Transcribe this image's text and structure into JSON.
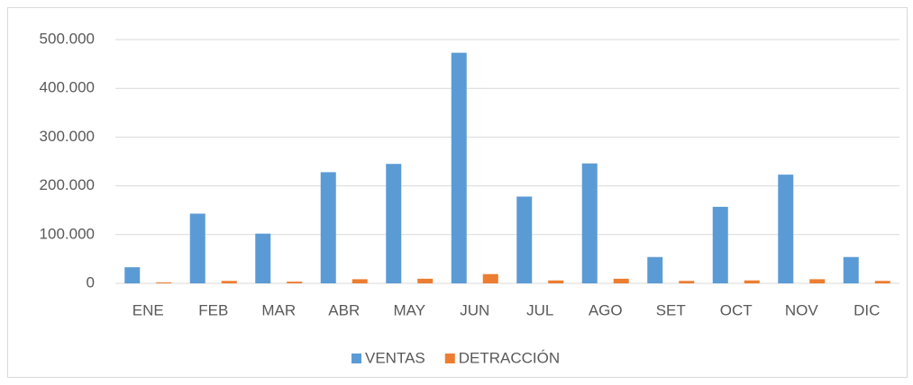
{
  "chart_data": {
    "type": "bar",
    "categories": [
      "ENE",
      "FEB",
      "MAR",
      "ABR",
      "MAY",
      "JUN",
      "JUL",
      "AGO",
      "SET",
      "OCT",
      "NOV",
      "DIC"
    ],
    "series": [
      {
        "name": "VENTAS",
        "color": "#5b9bd5",
        "values": [
          33000,
          143000,
          102000,
          228000,
          245000,
          473000,
          178000,
          246000,
          54000,
          157000,
          223000,
          54000
        ]
      },
      {
        "name": "DETRACCIÓN",
        "color": "#ed7d31",
        "values": [
          2000,
          5000,
          3500,
          8500,
          9500,
          19000,
          6000,
          9500,
          5000,
          6000,
          8500,
          5000
        ]
      }
    ],
    "ylim": [
      0,
      500000
    ],
    "yticks": [
      0,
      {
        "value": 100000,
        "label": "100.000"
      },
      {
        "value": 200000,
        "label": "200.000"
      },
      {
        "value": 300000,
        "label": "300.000"
      },
      {
        "value": 400000,
        "label": "400.000"
      },
      {
        "value": 500000,
        "label": "500.000"
      }
    ],
    "grid": true,
    "legend": "bottom"
  }
}
